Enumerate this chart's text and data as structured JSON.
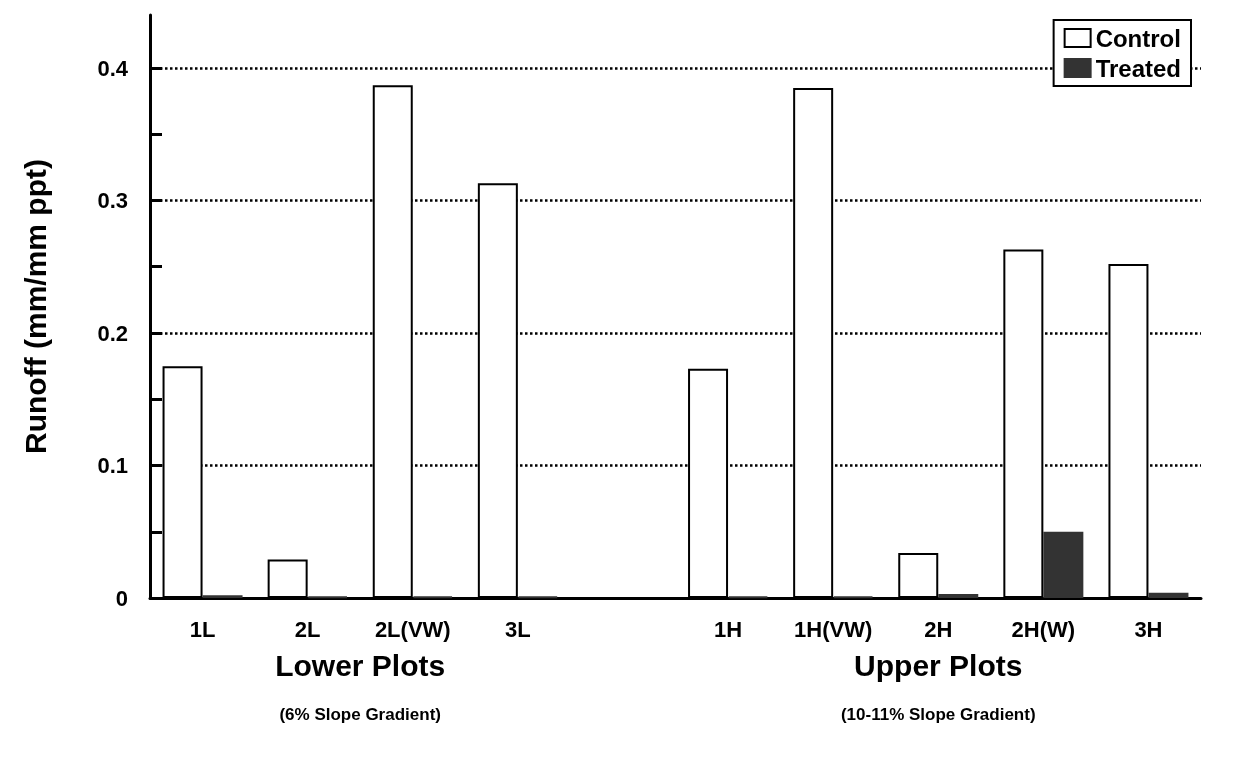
{
  "chart_data": {
    "type": "bar",
    "ylabel": "Runoff (mm/mm ppt)",
    "categories": [
      "1L",
      "2L",
      "2L(VW)",
      "3L",
      null,
      "1H",
      "1H(VW)",
      "2H",
      "2H(W)",
      "3H"
    ],
    "series": [
      {
        "name": "Control",
        "color": "#ffffff",
        "values": [
          0.175,
          0.029,
          0.387,
          0.313,
          null,
          0.173,
          0.385,
          0.034,
          0.263,
          0.252
        ]
      },
      {
        "name": "Treated",
        "color": "#333333",
        "values": [
          0.002,
          0.001,
          0.001,
          0.001,
          null,
          0.001,
          0.001,
          0.003,
          0.05,
          0.004
        ]
      }
    ],
    "ylim": [
      0,
      0.44
    ],
    "yticks": [
      0,
      {
        "value": 0.05,
        "label": null
      },
      0.1,
      {
        "value": 0.15,
        "label": null
      },
      0.2,
      {
        "value": 0.25,
        "label": null
      },
      0.3,
      {
        "value": 0.35,
        "label": null
      },
      0.4
    ],
    "grid": "y",
    "line_style": "dotted",
    "legend": "top right",
    "annotations": [
      "Lower Plots",
      "(6% Slope Gradient)",
      "Upper Plots",
      "(10-11% Slope Gradient)"
    ]
  }
}
